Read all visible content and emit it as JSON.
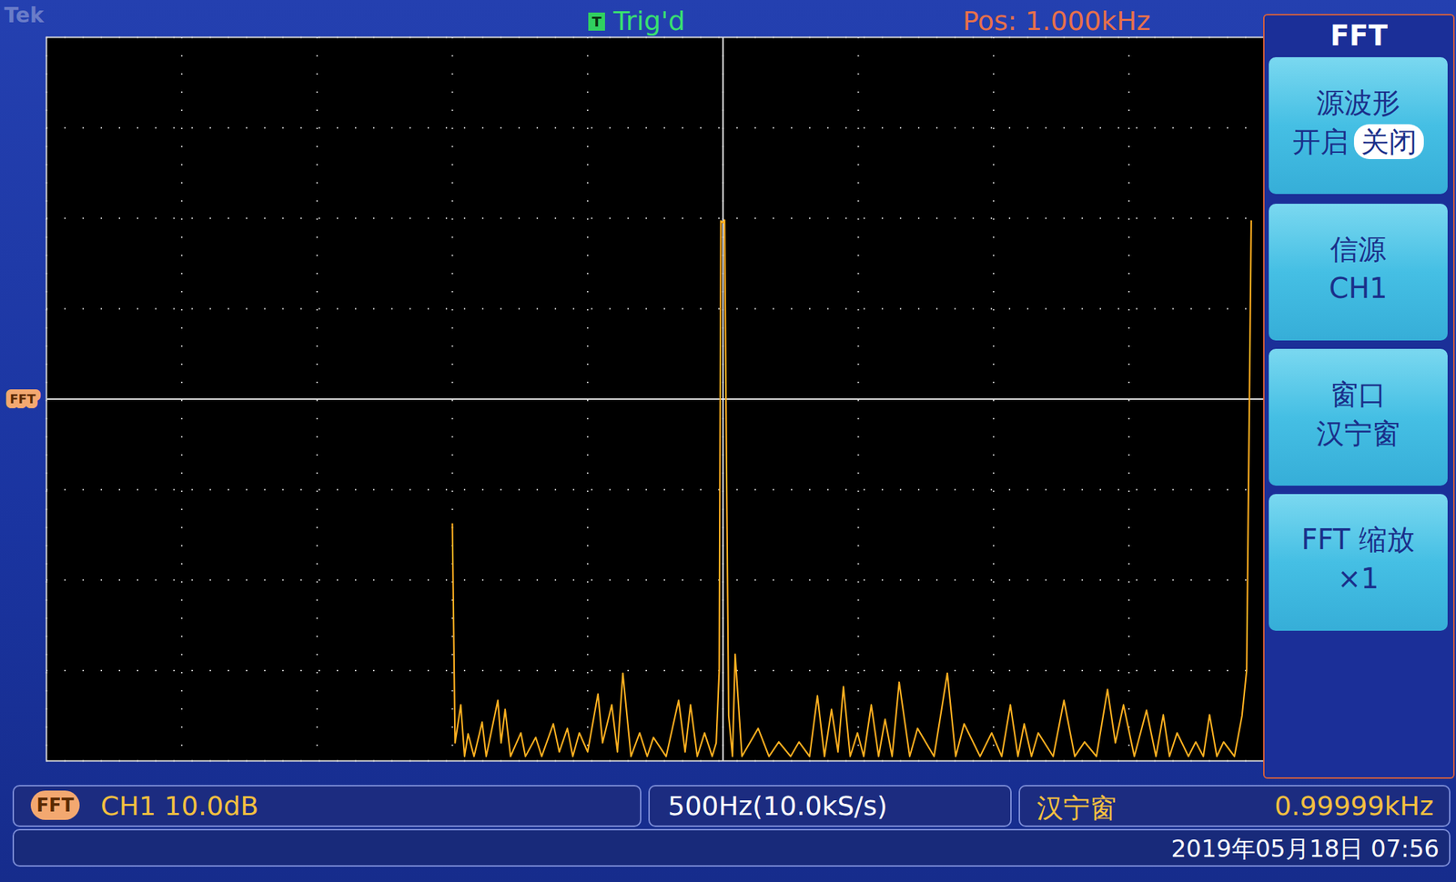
{
  "chart_data": {
    "type": "line",
    "color": "#ffb020",
    "line_style": "solid",
    "grid": true,
    "tick_labels": false,
    "xlim": [
      -1500,
      3000
    ],
    "xticks": [
      -1500,
      -1000,
      -500,
      0,
      500,
      1000,
      1500,
      2000,
      2500,
      3000
    ],
    "ylim": [
      -40,
      40
    ],
    "yticks": [
      -40,
      -30,
      -20,
      -10,
      0,
      10,
      20,
      30,
      40
    ],
    "position": {
      "value": 1000,
      "label": "Pos: 1.000kHz"
    },
    "reference_level": {
      "value": 0,
      "label": "FFT"
    },
    "x": [
      0,
      10,
      31,
      45,
      58,
      80,
      110,
      125,
      168,
      180,
      195,
      215,
      253,
      270,
      308,
      330,
      373,
      395,
      425,
      445,
      469,
      500,
      538,
      555,
      589,
      610,
      630,
      660,
      692,
      720,
      743,
      790,
      836,
      860,
      880,
      905,
      932,
      960,
      975,
      986,
      992,
      1000,
      1006,
      1013,
      1021,
      1035,
      1045,
      1070,
      1130,
      1170,
      1206,
      1250,
      1281,
      1320,
      1349,
      1375,
      1401,
      1425,
      1445,
      1470,
      1497,
      1520,
      1548,
      1575,
      1599,
      1625,
      1651,
      1690,
      1719,
      1780,
      1829,
      1860,
      1891,
      1950,
      1993,
      2030,
      2062,
      2090,
      2113,
      2140,
      2165,
      2220,
      2260,
      2300,
      2336,
      2380,
      2421,
      2450,
      2480,
      2520,
      2565,
      2600,
      2627,
      2650,
      2678,
      2720,
      2747,
      2775,
      2798,
      2825,
      2850,
      2890,
      2918,
      2935,
      2952
    ],
    "values": [
      -13.8,
      -38,
      -33.8,
      -39.5,
      -37,
      -39.5,
      -35.7,
      -39.5,
      -33.3,
      -38,
      -34.3,
      -39.5,
      -36.9,
      -39.5,
      -37.4,
      -39.5,
      -35.9,
      -39,
      -36.4,
      -39.5,
      -36.9,
      -39,
      -32.6,
      -38,
      -33.8,
      -39,
      -30.3,
      -39.5,
      -36.9,
      -39.5,
      -37.4,
      -39.5,
      -33.3,
      -39,
      -33.8,
      -39.5,
      -36.9,
      -39.5,
      -38,
      -30,
      19.7,
      19.5,
      19.8,
      -7.2,
      -35,
      -39.5,
      -28.2,
      -39.5,
      -36.4,
      -39.5,
      -37.9,
      -39.5,
      -37.9,
      -39.5,
      -32.8,
      -39.5,
      -34.3,
      -39,
      -31.8,
      -39.5,
      -36.9,
      -39.5,
      -33.8,
      -39.5,
      -35.4,
      -39.5,
      -31.3,
      -39.5,
      -36.4,
      -39.5,
      -30.3,
      -39.5,
      -35.9,
      -39.5,
      -36.9,
      -39.5,
      -33.8,
      -39.5,
      -35.9,
      -39.5,
      -36.9,
      -39.5,
      -33.3,
      -39.5,
      -37.9,
      -39.5,
      -32.1,
      -38,
      -33.8,
      -39.5,
      -34.4,
      -39.5,
      -34.9,
      -39.5,
      -36.9,
      -39.5,
      -37.9,
      -39.5,
      -34.9,
      -39.5,
      -37.9,
      -39.5,
      -35,
      -30,
      19.7
    ]
  },
  "display": {
    "brand": "Tek",
    "trigger": {
      "badge": "T",
      "status": "Trig'd"
    },
    "menu": {
      "title": "FFT",
      "buttons": [
        {
          "label": "源波形",
          "options": [
            "开启",
            "关闭"
          ],
          "selected": "关闭"
        },
        {
          "label": "信源",
          "value": "CH1"
        },
        {
          "label": "窗口",
          "value": "汉宁窗"
        },
        {
          "label": "FFT 缩放",
          "value": "×1"
        }
      ]
    },
    "status": {
      "badge": "FFT",
      "channel": "CH1 10.0dB",
      "timebase": "500Hz(10.0kS/s)",
      "window": "汉宁窗",
      "frequency": "0.99999kHz"
    },
    "datetime": "2019年05月18日 07:56"
  }
}
